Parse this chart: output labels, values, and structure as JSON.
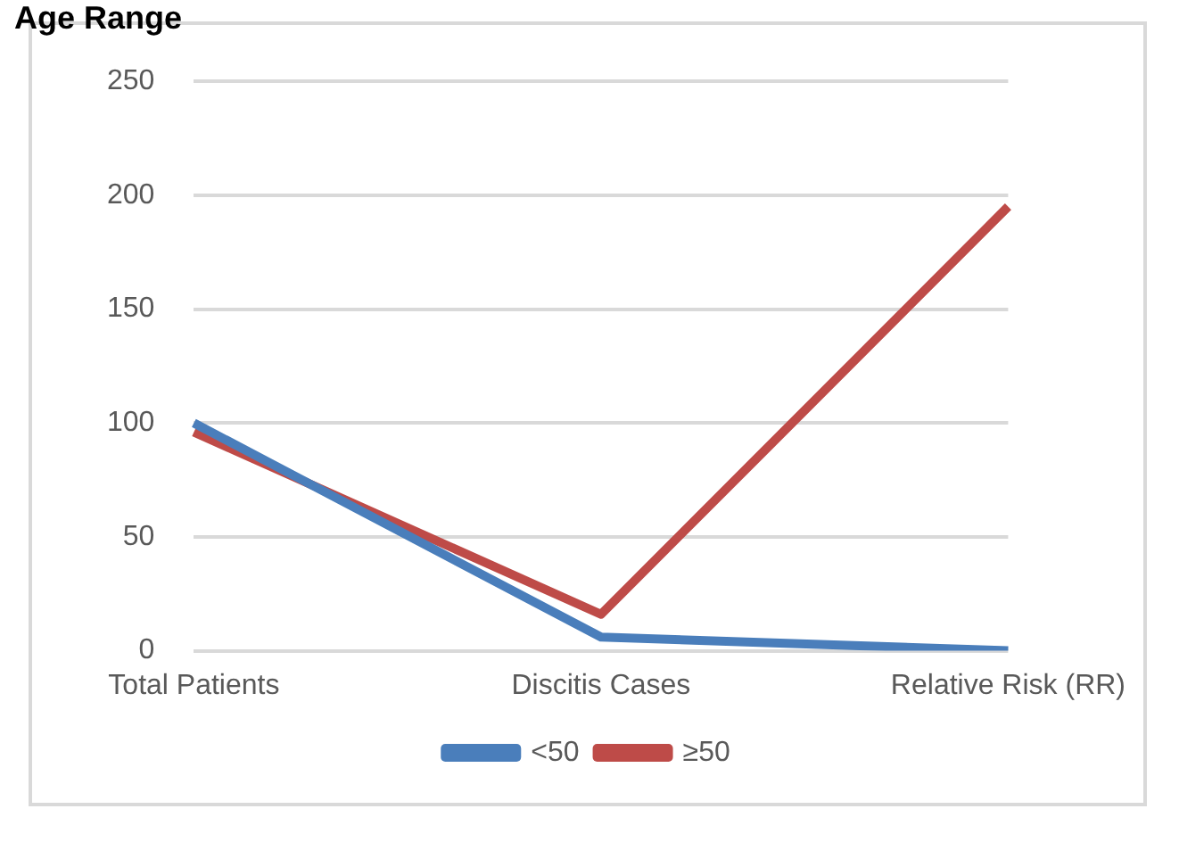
{
  "chart_data": {
    "type": "line",
    "title": "Age Range",
    "categories": [
      "Total Patients",
      "Discitis Cases",
      "Relative Risk (RR)"
    ],
    "series": [
      {
        "name": "<50",
        "color": "#4a7ebb",
        "values": [
          100,
          6,
          0
        ]
      },
      {
        "name": "≥50",
        "color": "#be4b48",
        "values": [
          96,
          16,
          195
        ]
      }
    ],
    "ylim": [
      0,
      250
    ],
    "yticks": [
      0,
      50,
      100,
      150,
      200,
      250
    ],
    "grid": "y",
    "legend": "bottom",
    "marker": "none",
    "line_style": "solid"
  }
}
